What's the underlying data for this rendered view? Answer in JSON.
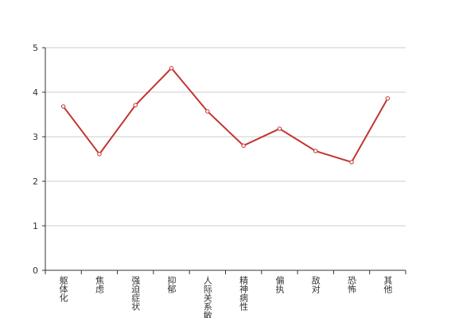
{
  "chart_data": {
    "type": "line",
    "categories": [
      "躯体化",
      "焦虑",
      "强迫症状",
      "抑郁",
      "人际关系敏感",
      "精神病性",
      "偏执",
      "敌对",
      "恐怖",
      "其他"
    ],
    "series": [
      {
        "color": "#c23531",
        "values": [
          3.68,
          2.61,
          3.71,
          4.54,
          3.57,
          2.8,
          3.18,
          2.68,
          2.43,
          3.86
        ]
      }
    ],
    "ylim": [
      0,
      5
    ],
    "yticks": [
      0,
      1,
      2,
      3,
      4,
      5
    ],
    "grid": true
  }
}
